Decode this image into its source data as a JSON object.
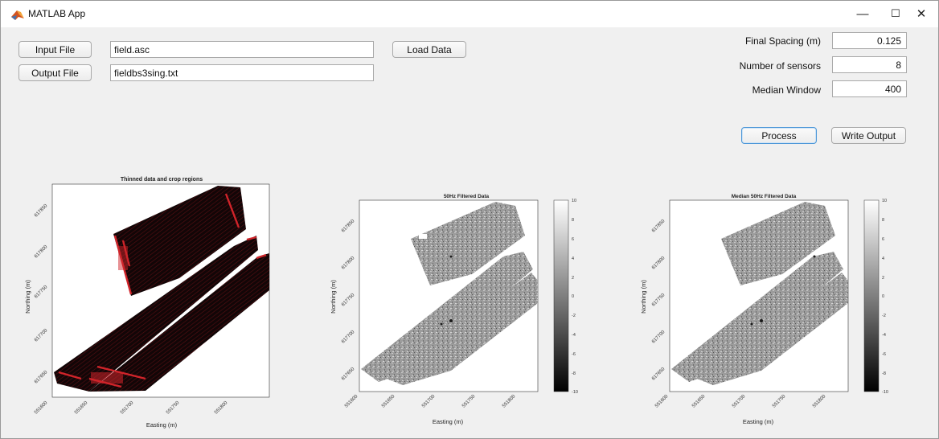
{
  "window": {
    "title": "MATLAB App",
    "minimize": "—",
    "maximize": "☐",
    "close": "✕"
  },
  "inputs": {
    "input_file_button": "Input File",
    "input_file_value": "field.asc",
    "output_file_button": "Output File",
    "output_file_value": "fieldbs3sing.txt",
    "load_data_button": "Load Data"
  },
  "params": {
    "final_spacing_label": "Final Spacing (m)",
    "final_spacing_value": "0.125",
    "num_sensors_label": "Number of sensors",
    "num_sensors_value": "8",
    "median_window_label": "Median Window",
    "median_window_value": "400"
  },
  "actions": {
    "process_button": "Process",
    "write_output_button": "Write Output"
  },
  "plots": [
    {
      "title": "Thinned data and crop regions",
      "xlabel": "Easting (m)",
      "ylabel": "Northing (m)",
      "xticks": [
        "551600",
        "551650",
        "551700",
        "551750",
        "551800"
      ],
      "yticks": [
        "617650",
        "617700",
        "617750",
        "617800",
        "617850"
      ]
    },
    {
      "title": "50Hz Filtered Data",
      "xlabel": "Easting (m)",
      "ylabel": "Northing (m)",
      "xticks": [
        "551600",
        "551650",
        "551700",
        "551750",
        "551800"
      ],
      "yticks": [
        "617650",
        "617700",
        "617750",
        "617800",
        "617850"
      ],
      "colorbar": [
        "10",
        "8",
        "6",
        "4",
        "2",
        "0",
        "-2",
        "-4",
        "-6",
        "-8",
        "-10"
      ]
    },
    {
      "title": "Median 50Hz Filtered Data",
      "xlabel": "Easting (m)",
      "ylabel": "Northing (m)",
      "xticks": [
        "551600",
        "551650",
        "551700",
        "551750",
        "551800"
      ],
      "yticks": [
        "617650",
        "617700",
        "617750",
        "617800",
        "617850"
      ],
      "colorbar": [
        "10",
        "8",
        "6",
        "4",
        "2",
        "0",
        "-2",
        "-4",
        "-6",
        "-8",
        "-10"
      ]
    }
  ],
  "colors": {
    "window_bg": "#f0f0f0",
    "accent_border": "#4d97d8",
    "thinned_fill": "#120607",
    "crop_region": "#d0242a",
    "filtered_fill": "#9a9a9a"
  }
}
